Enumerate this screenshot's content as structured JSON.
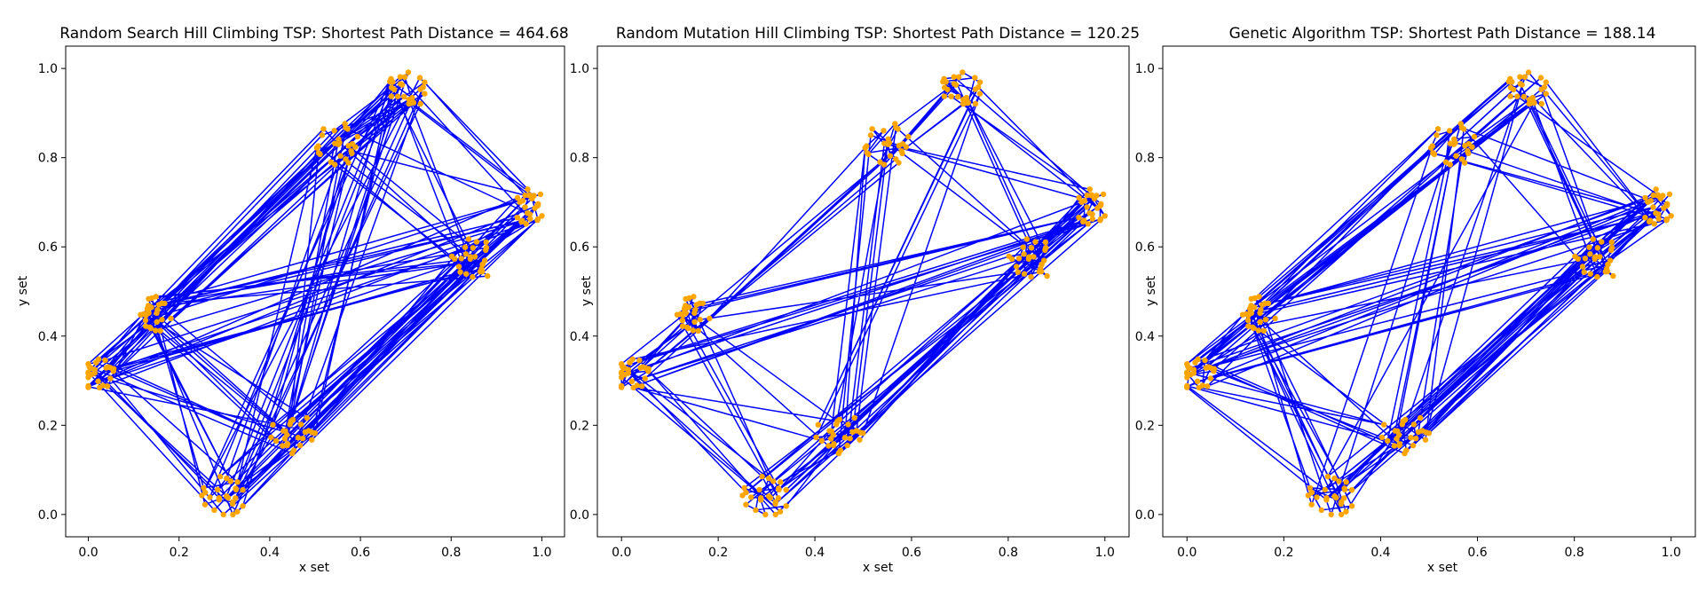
{
  "chart_data": [
    {
      "type": "line",
      "title": "Random Search Hill Climbing TSP: Shortest Path Distance = 464.68",
      "xlabel": "x set",
      "ylabel": "y set",
      "xlim": [
        -0.05,
        1.05
      ],
      "ylim": [
        -0.05,
        1.05
      ],
      "xticks": [
        "0.0",
        "0.2",
        "0.4",
        "0.6",
        "0.8",
        "1.0"
      ],
      "yticks": [
        "0.0",
        "0.2",
        "0.4",
        "0.6",
        "0.8",
        "1.0"
      ],
      "grid": false,
      "series": [
        {
          "role": "route",
          "color": "#0000ff"
        },
        {
          "role": "cities",
          "color": "#ffa500"
        }
      ]
    },
    {
      "type": "line",
      "title": "Random Mutation Hill Climbing TSP: Shortest Path Distance = 120.25",
      "xlabel": "x set",
      "ylabel": "y set",
      "xlim": [
        -0.05,
        1.05
      ],
      "ylim": [
        -0.05,
        1.05
      ],
      "xticks": [
        "0.0",
        "0.2",
        "0.4",
        "0.6",
        "0.8",
        "1.0"
      ],
      "yticks": [
        "0.0",
        "0.2",
        "0.4",
        "0.6",
        "0.8",
        "1.0"
      ],
      "grid": false,
      "series": [
        {
          "role": "route",
          "color": "#0000ff"
        },
        {
          "role": "cities",
          "color": "#ffa500"
        }
      ]
    },
    {
      "type": "line",
      "title": "Genetic Algorithm TSP: Shortest Path Distance = 188.14",
      "xlabel": "x set",
      "ylabel": "y set",
      "xlim": [
        -0.05,
        1.05
      ],
      "ylim": [
        -0.05,
        1.05
      ],
      "xticks": [
        "0.0",
        "0.2",
        "0.4",
        "0.6",
        "0.8",
        "1.0"
      ],
      "yticks": [
        "0.0",
        "0.2",
        "0.4",
        "0.6",
        "0.8",
        "1.0"
      ],
      "grid": false,
      "series": [
        {
          "role": "route",
          "color": "#0000ff"
        },
        {
          "role": "cities",
          "color": "#ffa500"
        }
      ]
    }
  ],
  "cities": [
    {
      "c": [
        0.02,
        0.31
      ],
      "r": 0.04
    },
    {
      "c": [
        0.15,
        0.45
      ],
      "r": 0.04
    },
    {
      "c": [
        0.3,
        0.04
      ],
      "r": 0.05
    },
    {
      "c": [
        0.45,
        0.18
      ],
      "r": 0.05
    },
    {
      "c": [
        0.55,
        0.83
      ],
      "r": 0.05
    },
    {
      "c": [
        0.7,
        0.95
      ],
      "r": 0.05
    },
    {
      "c": [
        0.97,
        0.69
      ],
      "r": 0.04
    },
    {
      "c": [
        0.85,
        0.57
      ],
      "r": 0.05
    }
  ]
}
